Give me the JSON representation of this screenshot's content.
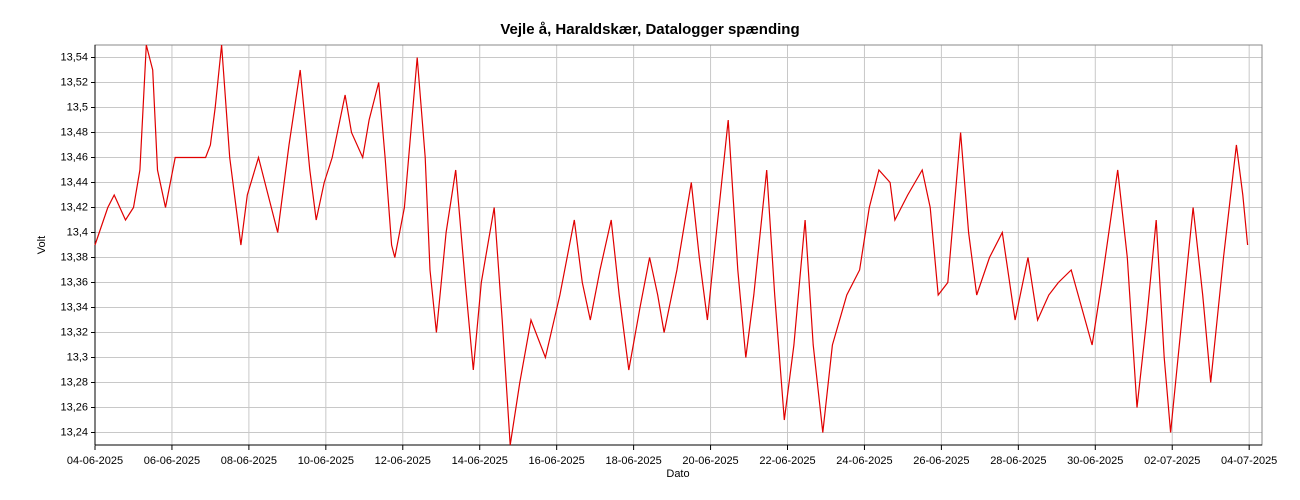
{
  "chart_data": {
    "type": "line",
    "title": "Vejle å, Haraldskær, Datalogger spænding",
    "x_label": "Dato",
    "y_label": "Volt",
    "x": [
      "2025-06-04T00:00",
      "2025-06-04T08:00",
      "2025-06-04T12:00",
      "2025-06-04T19:00",
      "2025-06-05T00:00",
      "2025-06-05T04:00",
      "2025-06-05T08:00",
      "2025-06-05T12:00",
      "2025-06-05T15:00",
      "2025-06-05T20:00",
      "2025-06-06T02:00",
      "2025-06-06T21:00",
      "2025-06-07T00:00",
      "2025-06-07T03:00",
      "2025-06-07T07:00",
      "2025-06-07T12:00",
      "2025-06-07T16:00",
      "2025-06-07T19:00",
      "2025-06-07T23:00",
      "2025-06-08T06:00",
      "2025-06-08T12:00",
      "2025-06-08T18:00",
      "2025-06-09T01:00",
      "2025-06-09T08:00",
      "2025-06-09T14:00",
      "2025-06-09T18:00",
      "2025-06-09T23:00",
      "2025-06-10T04:00",
      "2025-06-10T12:00",
      "2025-06-10T16:00",
      "2025-06-10T23:00",
      "2025-06-11T03:00",
      "2025-06-11T09:00",
      "2025-06-11T13:00",
      "2025-06-11T17:00",
      "2025-06-11T19:00",
      "2025-06-12T01:00",
      "2025-06-12T09:00",
      "2025-06-12T14:00",
      "2025-06-12T17:00",
      "2025-06-12T21:00",
      "2025-06-13T03:00",
      "2025-06-13T09:00",
      "2025-06-13T15:00",
      "2025-06-13T20:00",
      "2025-06-14T01:00",
      "2025-06-14T09:00",
      "2025-06-14T14:00",
      "2025-06-14T19:00",
      "2025-06-15T01:00",
      "2025-06-15T08:00",
      "2025-06-15T17:00",
      "2025-06-16T02:00",
      "2025-06-16T11:00",
      "2025-06-16T16:00",
      "2025-06-16T21:00",
      "2025-06-17T03:00",
      "2025-06-17T10:00",
      "2025-06-17T15:00",
      "2025-06-17T21:00",
      "2025-06-18T04:00",
      "2025-06-18T10:00",
      "2025-06-18T15:00",
      "2025-06-18T19:00",
      "2025-06-19T03:00",
      "2025-06-19T12:00",
      "2025-06-19T17:00",
      "2025-06-19T22:00",
      "2025-06-20T02:00",
      "2025-06-20T11:00",
      "2025-06-20T17:00",
      "2025-06-20T22:00",
      "2025-06-21T03:00",
      "2025-06-21T11:00",
      "2025-06-21T16:00",
      "2025-06-21T22:00",
      "2025-06-22T04:00",
      "2025-06-22T11:00",
      "2025-06-22T16:00",
      "2025-06-22T22:00",
      "2025-06-23T04:00",
      "2025-06-23T13:00",
      "2025-06-23T21:00",
      "2025-06-24T03:00",
      "2025-06-24T09:00",
      "2025-06-24T16:00",
      "2025-06-24T19:00",
      "2025-06-25T03:00",
      "2025-06-25T12:00",
      "2025-06-25T17:00",
      "2025-06-25T22:00",
      "2025-06-26T04:00",
      "2025-06-26T12:00",
      "2025-06-26T17:00",
      "2025-06-26T22:00",
      "2025-06-27T06:00",
      "2025-06-27T14:00",
      "2025-06-27T22:00",
      "2025-06-28T06:00",
      "2025-06-28T12:00",
      "2025-06-28T19:00",
      "2025-06-29T01:00",
      "2025-06-29T09:00",
      "2025-06-29T22:00",
      "2025-06-30T04:00",
      "2025-06-30T14:00",
      "2025-06-30T20:00",
      "2025-07-01T02:00",
      "2025-07-01T08:00",
      "2025-07-01T14:00",
      "2025-07-01T19:00",
      "2025-07-01T23:00",
      "2025-07-02T06:00",
      "2025-07-02T13:00",
      "2025-07-02T19:00",
      "2025-07-03T00:00",
      "2025-07-03T08:00",
      "2025-07-03T16:00",
      "2025-07-03T20:00",
      "2025-07-03T23:00"
    ],
    "series": [
      {
        "color": "#e00000",
        "values": [
          13.39,
          13.42,
          13.43,
          13.41,
          13.42,
          13.45,
          13.55,
          13.53,
          13.45,
          13.42,
          13.46,
          13.46,
          13.47,
          13.5,
          13.55,
          13.46,
          13.42,
          13.39,
          13.43,
          13.46,
          13.43,
          13.4,
          13.47,
          13.53,
          13.45,
          13.41,
          13.44,
          13.46,
          13.51,
          13.48,
          13.46,
          13.49,
          13.52,
          13.46,
          13.39,
          13.38,
          13.42,
          13.54,
          13.46,
          13.37,
          13.32,
          13.4,
          13.45,
          13.36,
          13.29,
          13.36,
          13.42,
          13.33,
          13.23,
          13.28,
          13.33,
          13.3,
          13.35,
          13.41,
          13.36,
          13.33,
          13.37,
          13.41,
          13.35,
          13.29,
          13.34,
          13.38,
          13.35,
          13.32,
          13.37,
          13.44,
          13.38,
          13.33,
          13.38,
          13.49,
          13.37,
          13.3,
          13.35,
          13.45,
          13.35,
          13.25,
          13.31,
          13.41,
          13.31,
          13.24,
          13.31,
          13.35,
          13.37,
          13.42,
          13.45,
          13.44,
          13.41,
          13.43,
          13.45,
          13.42,
          13.35,
          13.36,
          13.48,
          13.4,
          13.35,
          13.38,
          13.4,
          13.33,
          13.38,
          13.33,
          13.35,
          13.36,
          13.37,
          13.31,
          13.36,
          13.45,
          13.38,
          13.26,
          13.33,
          13.41,
          13.3,
          13.24,
          13.33,
          13.42,
          13.35,
          13.28,
          13.38,
          13.47,
          13.43,
          13.39
        ]
      }
    ],
    "xlim": [
      "2025-06-04T00:00",
      "2025-07-04T08:00"
    ],
    "xticks": [
      {
        "value": "2025-06-04T00:00",
        "label": "04-06-2025"
      },
      {
        "value": "2025-06-06T00:00",
        "label": "06-06-2025"
      },
      {
        "value": "2025-06-08T00:00",
        "label": "08-06-2025"
      },
      {
        "value": "2025-06-10T00:00",
        "label": "10-06-2025"
      },
      {
        "value": "2025-06-12T00:00",
        "label": "12-06-2025"
      },
      {
        "value": "2025-06-14T00:00",
        "label": "14-06-2025"
      },
      {
        "value": "2025-06-16T00:00",
        "label": "16-06-2025"
      },
      {
        "value": "2025-06-18T00:00",
        "label": "18-06-2025"
      },
      {
        "value": "2025-06-20T00:00",
        "label": "20-06-2025"
      },
      {
        "value": "2025-06-22T00:00",
        "label": "22-06-2025"
      },
      {
        "value": "2025-06-24T00:00",
        "label": "24-06-2025"
      },
      {
        "value": "2025-06-26T00:00",
        "label": "26-06-2025"
      },
      {
        "value": "2025-06-28T00:00",
        "label": "28-06-2025"
      },
      {
        "value": "2025-06-30T00:00",
        "label": "30-06-2025"
      },
      {
        "value": "2025-07-02T00:00",
        "label": "02-07-2025"
      },
      {
        "value": "2025-07-04T00:00",
        "label": "04-07-2025"
      }
    ],
    "ylim": [
      13.23,
      13.55
    ],
    "yticks": [
      {
        "value": 13.24,
        "label": "13,24"
      },
      {
        "value": 13.26,
        "label": "13,26"
      },
      {
        "value": 13.28,
        "label": "13,28"
      },
      {
        "value": 13.3,
        "label": "13,3"
      },
      {
        "value": 13.32,
        "label": "13,32"
      },
      {
        "value": 13.34,
        "label": "13,34"
      },
      {
        "value": 13.36,
        "label": "13,36"
      },
      {
        "value": 13.38,
        "label": "13,38"
      },
      {
        "value": 13.4,
        "label": "13,4"
      },
      {
        "value": 13.42,
        "label": "13,42"
      },
      {
        "value": 13.44,
        "label": "13,44"
      },
      {
        "value": 13.46,
        "label": "13,46"
      },
      {
        "value": 13.48,
        "label": "13,48"
      },
      {
        "value": 13.5,
        "label": "13,5"
      },
      {
        "value": 13.52,
        "label": "13,52"
      },
      {
        "value": 13.54,
        "label": "13,54"
      }
    ],
    "grid": true
  }
}
